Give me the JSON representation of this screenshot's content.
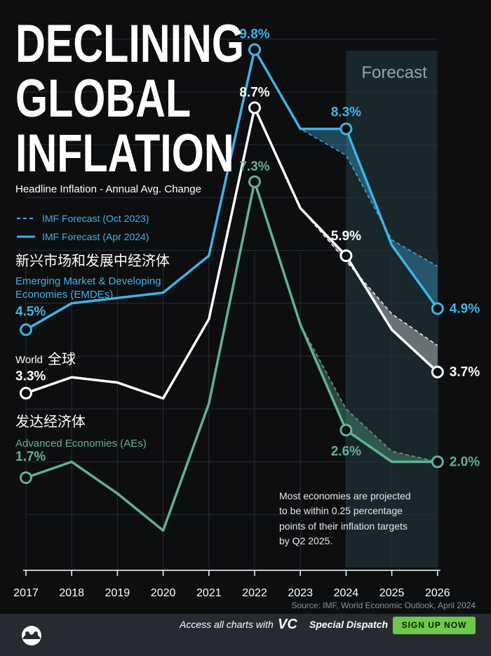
{
  "title": {
    "line1": "DECLINING",
    "line2": "GLOBAL",
    "line3": "INFLATION"
  },
  "subtitle": "Headline Inflation - Annual Avg. Change",
  "legend": {
    "oct": "IMF Forecast (Oct 2023)",
    "apr": "IMF Forecast (Apr 2024)"
  },
  "forecast_label": "Forecast",
  "note": {
    "l1": "Most economies are projected",
    "l2": "to be within 0.25 percentage",
    "l3": "points of their inflation targets",
    "l4": "by Q2 2025."
  },
  "source": "Source: IMF, World Economic Outlook, April 2024",
  "footer": {
    "access": "Access all charts with",
    "brand": "VC",
    "dispatch": "Special Dispatch",
    "signup": "SIGN UP NOW"
  },
  "colors": {
    "emde": "#3fb3e4",
    "world": "#ffffff",
    "ae": "#5fb393",
    "bg": "#0d0e10"
  },
  "chart_data": {
    "type": "line",
    "x": [
      "2017",
      "2018",
      "2019",
      "2020",
      "2021",
      "2022",
      "2023",
      "2024",
      "2025",
      "2026"
    ],
    "ylim": [
      0,
      10.5
    ],
    "grid": true,
    "series": [
      {
        "key": "emde",
        "label_cn": "新兴市场和发展中经济体",
        "label": "Emerging Market & Developing",
        "label2": "Economies (EMDEs)",
        "values": [
          4.5,
          5.0,
          5.1,
          5.2,
          5.9,
          9.8,
          8.3,
          8.3,
          6.1,
          4.9
        ],
        "oct_values": [
          4.5,
          5.0,
          5.1,
          5.2,
          5.9,
          9.8,
          8.3,
          7.8,
          6.2,
          5.7
        ],
        "start_label": "4.5%",
        "end_label": "4.9%",
        "peak_label": "9.8%",
        "mid_label": "8.3%"
      },
      {
        "key": "world",
        "label_cn": "全球",
        "label": "World",
        "values": [
          3.3,
          3.6,
          3.5,
          3.2,
          4.7,
          8.7,
          6.8,
          5.9,
          4.5,
          3.7
        ],
        "oct_values": [
          3.3,
          3.6,
          3.5,
          3.2,
          4.7,
          8.7,
          6.8,
          5.8,
          4.8,
          4.2
        ],
        "start_label": "3.3%",
        "end_label": "3.7%",
        "peak_label": "8.7%",
        "mid_label": "5.9%"
      },
      {
        "key": "ae",
        "label_cn": "发达经济体",
        "label": "Advanced Economies (AEs)",
        "values": [
          1.7,
          2.0,
          1.4,
          0.7,
          3.1,
          7.3,
          4.6,
          2.6,
          2.0,
          2.0
        ],
        "oct_values": [
          1.7,
          2.0,
          1.4,
          0.7,
          3.1,
          7.3,
          4.6,
          3.0,
          2.2,
          2.0
        ],
        "start_label": "1.7%",
        "end_label": "2.0%",
        "peak_label": "7.3%",
        "mid_label": "2.6%"
      }
    ]
  }
}
